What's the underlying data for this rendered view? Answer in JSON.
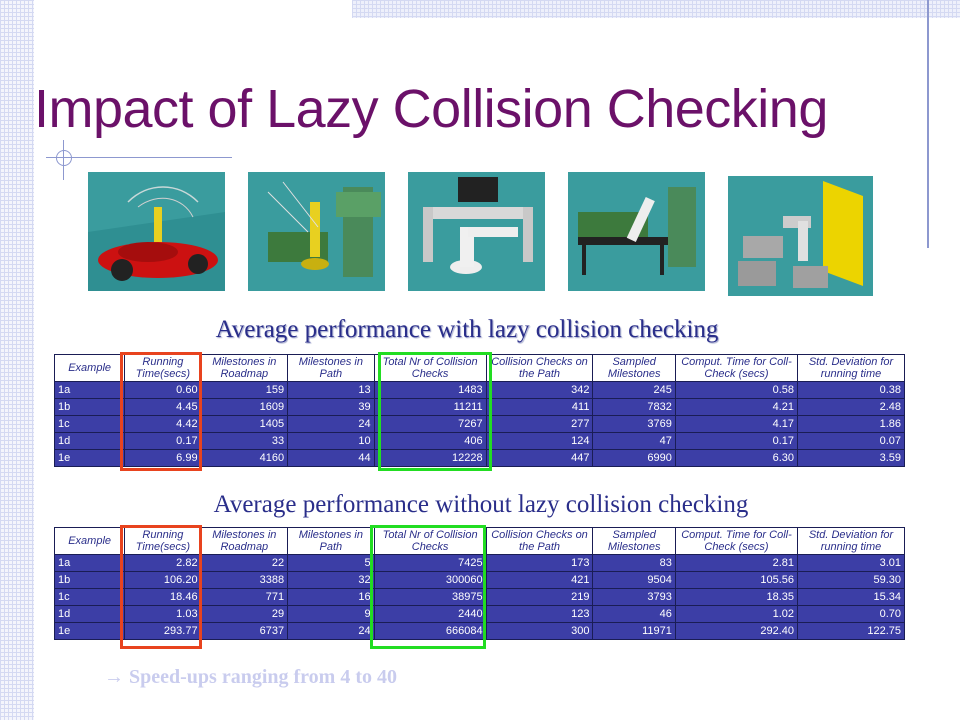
{
  "slide": {
    "title": "Impact of Lazy Collision Checking",
    "subtitle_with": "Average performance with lazy collision checking",
    "subtitle_without": "Average performance without lazy collision checking",
    "footer_arrow": "→",
    "footer_text": "Speed-ups ranging from 4 to 40"
  },
  "images": [
    {
      "name": "robot-car-scene"
    },
    {
      "name": "robot-arm-drill-scene"
    },
    {
      "name": "robot-frame-scene"
    },
    {
      "name": "robot-table-scene"
    },
    {
      "name": "robot-yellow-wall-scene"
    }
  ],
  "headers": [
    "Example",
    "Running Time(secs)",
    "Milestones in Roadmap",
    "Milestones in Path",
    "Total Nr of Collision Checks",
    "Collision Checks on the Path",
    "Sampled Milestones",
    "Comput. Time for Coll-Check (secs)",
    "Std. Deviation for running time"
  ],
  "table_with": [
    [
      "1a",
      "0.60",
      "159",
      "13",
      "1483",
      "342",
      "245",
      "0.58",
      "0.38"
    ],
    [
      "1b",
      "4.45",
      "1609",
      "39",
      "11211",
      "411",
      "7832",
      "4.21",
      "2.48"
    ],
    [
      "1c",
      "4.42",
      "1405",
      "24",
      "7267",
      "277",
      "3769",
      "4.17",
      "1.86"
    ],
    [
      "1d",
      "0.17",
      "33",
      "10",
      "406",
      "124",
      "47",
      "0.17",
      "0.07"
    ],
    [
      "1e",
      "6.99",
      "4160",
      "44",
      "12228",
      "447",
      "6990",
      "6.30",
      "3.59"
    ]
  ],
  "table_without": [
    [
      "1a",
      "2.82",
      "22",
      "5",
      "7425",
      "173",
      "83",
      "2.81",
      "3.01"
    ],
    [
      "1b",
      "106.20",
      "3388",
      "32",
      "300060",
      "421",
      "9504",
      "105.56",
      "59.30"
    ],
    [
      "1c",
      "18.46",
      "771",
      "16",
      "38975",
      "219",
      "3793",
      "18.35",
      "15.34"
    ],
    [
      "1d",
      "1.03",
      "29",
      "9",
      "2440",
      "123",
      "46",
      "1.02",
      "0.70"
    ],
    [
      "1e",
      "293.77",
      "6737",
      "24",
      "666084",
      "300",
      "11971",
      "292.40",
      "122.75"
    ]
  ],
  "colors": {
    "title": "#6b1169",
    "table_bg": "#3c3ea6",
    "highlight_running_time": "#e8431e",
    "highlight_collision_checks": "#22dd22"
  }
}
